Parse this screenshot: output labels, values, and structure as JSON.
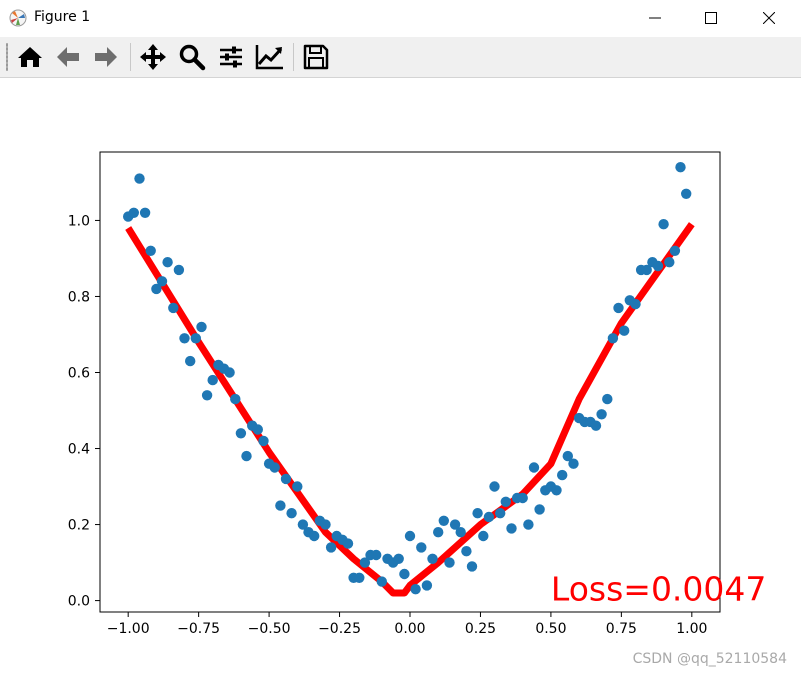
{
  "window": {
    "title": "Figure 1",
    "minimize_glyph": "—",
    "maximize_glyph": "☐",
    "close_glyph": "✕"
  },
  "toolbar": {
    "buttons": [
      {
        "name": "home-button",
        "icon": "home-icon"
      },
      {
        "name": "back-button",
        "icon": "arrow-left-icon"
      },
      {
        "name": "forward-button",
        "icon": "arrow-right-icon"
      },
      {
        "name": "pan-button",
        "icon": "move-icon"
      },
      {
        "name": "zoom-button",
        "icon": "magnifier-icon"
      },
      {
        "name": "subplots-button",
        "icon": "sliders-icon"
      },
      {
        "name": "edit-axes-button",
        "icon": "line-chart-icon"
      },
      {
        "name": "save-button",
        "icon": "floppy-disk-icon"
      }
    ]
  },
  "chart_data": {
    "type": "scatter",
    "xlim": [
      -1.1,
      1.1
    ],
    "ylim": [
      -0.03,
      1.18
    ],
    "x_ticks": [
      -1.0,
      -0.75,
      -0.5,
      -0.25,
      0.0,
      0.25,
      0.5,
      0.75,
      1.0
    ],
    "x_tick_labels": [
      "−1.00",
      "−0.75",
      "−0.50",
      "−0.25",
      "0.00",
      "0.25",
      "0.50",
      "0.75",
      "1.00"
    ],
    "y_ticks": [
      0.0,
      0.2,
      0.4,
      0.6,
      0.8,
      1.0
    ],
    "y_tick_labels": [
      "0.0",
      "0.2",
      "0.4",
      "0.6",
      "0.8",
      "1.0"
    ],
    "grid": false,
    "scatter_color": "#1f77b4",
    "fit_color": "#ff0000",
    "scatter_points": [
      [
        -1.0,
        1.01
      ],
      [
        -0.98,
        1.02
      ],
      [
        -0.96,
        1.11
      ],
      [
        -0.94,
        1.02
      ],
      [
        -0.92,
        0.92
      ],
      [
        -0.9,
        0.82
      ],
      [
        -0.88,
        0.84
      ],
      [
        -0.86,
        0.89
      ],
      [
        -0.84,
        0.77
      ],
      [
        -0.82,
        0.87
      ],
      [
        -0.8,
        0.69
      ],
      [
        -0.78,
        0.63
      ],
      [
        -0.76,
        0.69
      ],
      [
        -0.74,
        0.72
      ],
      [
        -0.72,
        0.54
      ],
      [
        -0.7,
        0.58
      ],
      [
        -0.68,
        0.62
      ],
      [
        -0.66,
        0.61
      ],
      [
        -0.64,
        0.6
      ],
      [
        -0.62,
        0.53
      ],
      [
        -0.6,
        0.44
      ],
      [
        -0.58,
        0.38
      ],
      [
        -0.56,
        0.46
      ],
      [
        -0.54,
        0.45
      ],
      [
        -0.52,
        0.42
      ],
      [
        -0.5,
        0.36
      ],
      [
        -0.48,
        0.35
      ],
      [
        -0.46,
        0.25
      ],
      [
        -0.44,
        0.32
      ],
      [
        -0.42,
        0.23
      ],
      [
        -0.4,
        0.3
      ],
      [
        -0.38,
        0.2
      ],
      [
        -0.36,
        0.18
      ],
      [
        -0.34,
        0.17
      ],
      [
        -0.32,
        0.21
      ],
      [
        -0.3,
        0.2
      ],
      [
        -0.28,
        0.14
      ],
      [
        -0.26,
        0.17
      ],
      [
        -0.24,
        0.16
      ],
      [
        -0.22,
        0.15
      ],
      [
        -0.2,
        0.06
      ],
      [
        -0.18,
        0.06
      ],
      [
        -0.16,
        0.1
      ],
      [
        -0.14,
        0.12
      ],
      [
        -0.12,
        0.12
      ],
      [
        -0.1,
        0.05
      ],
      [
        -0.08,
        0.11
      ],
      [
        -0.06,
        0.1
      ],
      [
        -0.04,
        0.11
      ],
      [
        -0.02,
        0.07
      ],
      [
        0.0,
        0.17
      ],
      [
        0.02,
        0.03
      ],
      [
        0.04,
        0.14
      ],
      [
        0.06,
        0.04
      ],
      [
        0.08,
        0.11
      ],
      [
        0.1,
        0.18
      ],
      [
        0.12,
        0.21
      ],
      [
        0.14,
        0.1
      ],
      [
        0.16,
        0.2
      ],
      [
        0.18,
        0.18
      ],
      [
        0.2,
        0.13
      ],
      [
        0.22,
        0.09
      ],
      [
        0.24,
        0.23
      ],
      [
        0.26,
        0.17
      ],
      [
        0.28,
        0.22
      ],
      [
        0.3,
        0.3
      ],
      [
        0.32,
        0.23
      ],
      [
        0.34,
        0.26
      ],
      [
        0.36,
        0.19
      ],
      [
        0.38,
        0.27
      ],
      [
        0.4,
        0.27
      ],
      [
        0.42,
        0.2
      ],
      [
        0.44,
        0.35
      ],
      [
        0.46,
        0.24
      ],
      [
        0.48,
        0.29
      ],
      [
        0.5,
        0.3
      ],
      [
        0.52,
        0.29
      ],
      [
        0.54,
        0.33
      ],
      [
        0.56,
        0.38
      ],
      [
        0.58,
        0.36
      ],
      [
        0.6,
        0.48
      ],
      [
        0.62,
        0.47
      ],
      [
        0.64,
        0.47
      ],
      [
        0.66,
        0.46
      ],
      [
        0.68,
        0.49
      ],
      [
        0.7,
        0.53
      ],
      [
        0.72,
        0.69
      ],
      [
        0.74,
        0.77
      ],
      [
        0.76,
        0.71
      ],
      [
        0.78,
        0.79
      ],
      [
        0.8,
        0.78
      ],
      [
        0.82,
        0.87
      ],
      [
        0.84,
        0.87
      ],
      [
        0.86,
        0.89
      ],
      [
        0.88,
        0.88
      ],
      [
        0.9,
        0.99
      ],
      [
        0.92,
        0.89
      ],
      [
        0.94,
        0.92
      ],
      [
        0.96,
        1.14
      ],
      [
        0.98,
        1.07
      ]
    ],
    "fit_line": [
      [
        -1.0,
        0.98
      ],
      [
        -0.75,
        0.68
      ],
      [
        -0.5,
        0.39
      ],
      [
        -0.3,
        0.18
      ],
      [
        -0.2,
        0.11
      ],
      [
        -0.1,
        0.05
      ],
      [
        -0.06,
        0.02
      ],
      [
        -0.02,
        0.02
      ],
      [
        0.0,
        0.04
      ],
      [
        0.1,
        0.1
      ],
      [
        0.25,
        0.2
      ],
      [
        0.4,
        0.28
      ],
      [
        0.5,
        0.36
      ],
      [
        0.6,
        0.53
      ],
      [
        0.75,
        0.73
      ],
      [
        1.0,
        0.99
      ]
    ],
    "annotation": {
      "text": "Loss=0.0047",
      "x": 0.5,
      "y": 0.0,
      "color": "#ff0000"
    }
  },
  "watermark": "CSDN @qq_52110584"
}
